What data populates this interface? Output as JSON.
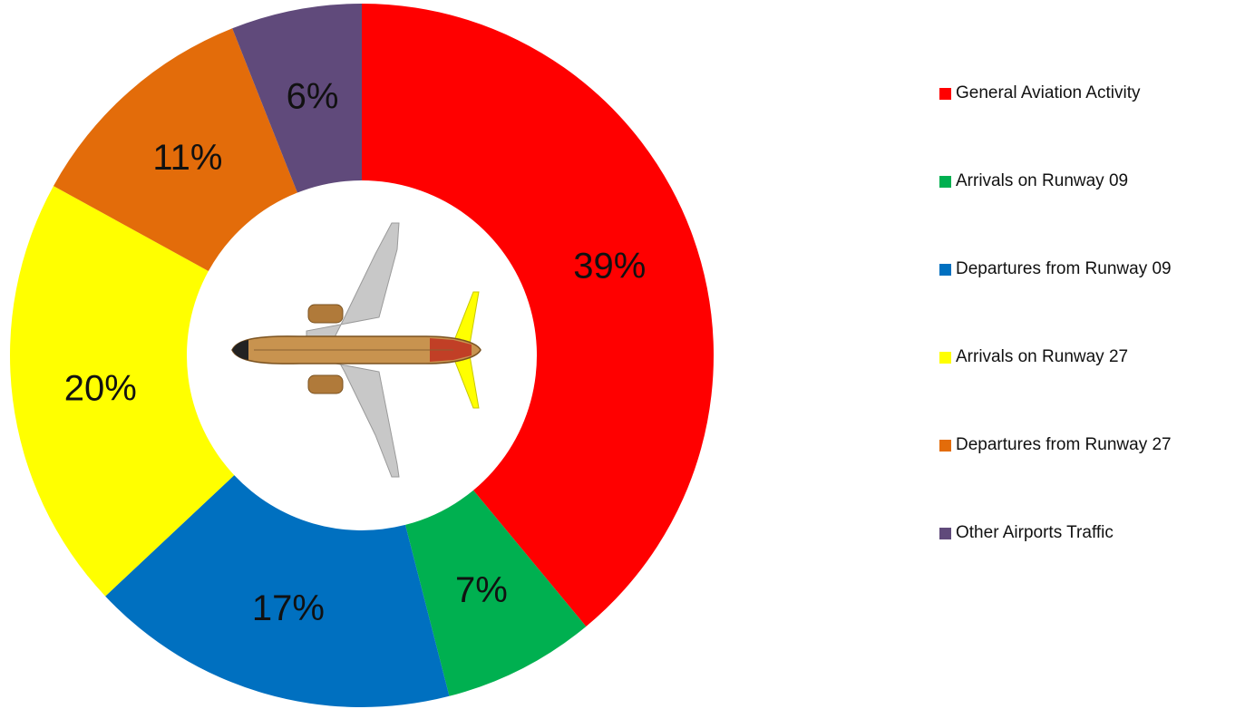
{
  "chart_data": {
    "type": "pie",
    "variant": "donut",
    "title": "",
    "categories": [
      "General Aviation Activity",
      "Arrivals on Runway 09",
      "Departures from Runway 09",
      "Arrivals on Runway 27",
      "Departures from Runway 27",
      "Other Airports Traffic"
    ],
    "values": [
      39,
      7,
      17,
      20,
      11,
      6
    ],
    "data_labels": [
      "39%",
      "7%",
      "17%",
      "20%",
      "11%",
      "6%"
    ],
    "colors": [
      "#ff0000",
      "#00b050",
      "#0070c0",
      "#ffff00",
      "#e36c0a",
      "#604a7b"
    ],
    "start_angle": "12 o'clock",
    "direction": "clockwise",
    "legend_position": "right",
    "center_image": "airplane-icon"
  }
}
